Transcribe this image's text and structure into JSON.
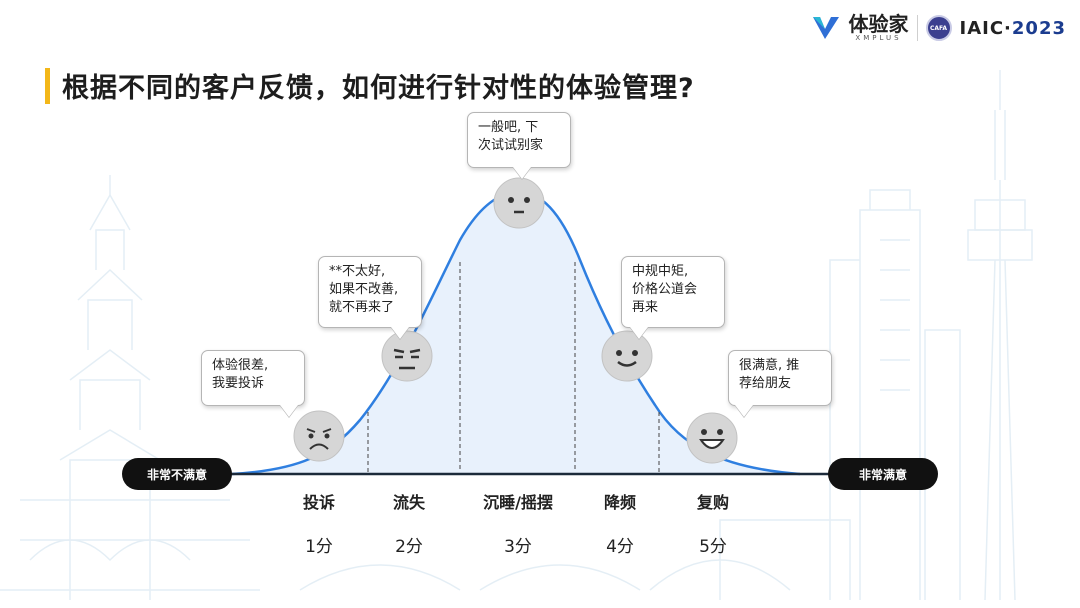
{
  "header": {
    "title": "根据不同的客户反馈，如何进行针对性的体验管理?",
    "brand_cn": "体验家",
    "brand_en": "XMPLUS",
    "seal_text": "CAFA",
    "event_prefix": "IAIC·",
    "event_year": "2023"
  },
  "colors": {
    "accent": "#f3b719",
    "curve": "#2f7fe0",
    "curve_fill": "#e8f1fc",
    "face": "#d9d9d9",
    "pill": "#111111"
  },
  "axis": {
    "left_label": "非常不满意",
    "right_label": "非常满意"
  },
  "stages": [
    {
      "name": "投诉",
      "score": "1分",
      "face": "sad-face-icon",
      "bubble": [
        "体验很差,",
        "我要投诉"
      ]
    },
    {
      "name": "流失",
      "score": "2分",
      "face": "annoyed-face-icon",
      "bubble": [
        "**不太好,",
        "如果不改善,",
        "就不再来了"
      ]
    },
    {
      "name": "沉睡/摇摆",
      "score": "3分",
      "face": "neutral-face-icon",
      "bubble": [
        "一般吧, 下",
        "次试试别家"
      ]
    },
    {
      "name": "降频",
      "score": "4分",
      "face": "smile-face-icon",
      "bubble": [
        "中规中矩,",
        "价格公道会",
        "再来"
      ]
    },
    {
      "name": "复购",
      "score": "5分",
      "face": "grin-face-icon",
      "bubble": [
        "很满意, 推",
        "荐给朋友"
      ]
    }
  ]
}
